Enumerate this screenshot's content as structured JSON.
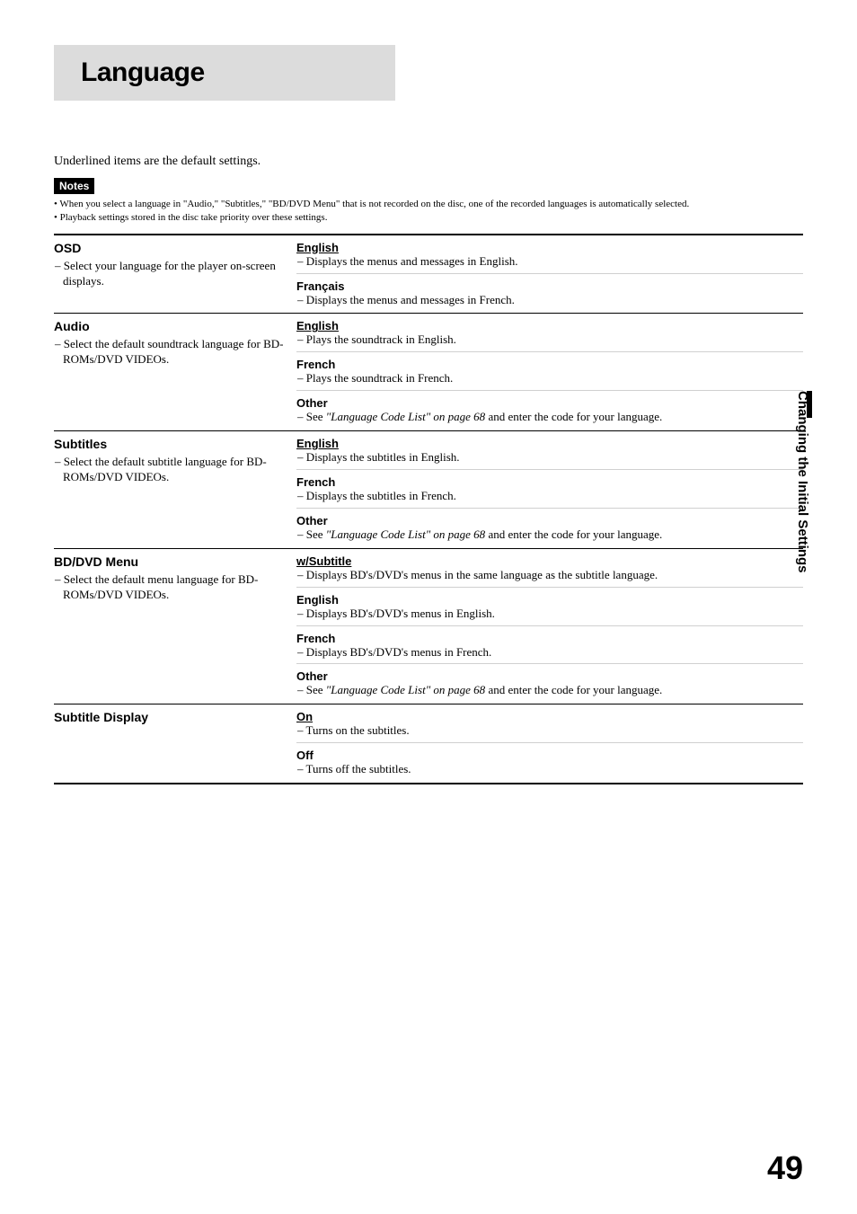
{
  "title": "Language",
  "intro": "Underlined items are the default settings.",
  "notes_label": "Notes",
  "notes": [
    "• When you select a language in \"Audio,\" \"Subtitles,\" \"BD/DVD Menu\" that is not recorded on the disc, one of the recorded languages is automatically selected.",
    "• Playback settings stored in the disc take priority over these settings."
  ],
  "sections": [
    {
      "name": "OSD",
      "desc": "– Select your language for the player on-screen displays.",
      "options": [
        {
          "name": "English",
          "default": true,
          "desc": "– Displays the menus and messages in English."
        },
        {
          "name": "Français",
          "default": false,
          "desc": "– Displays the menus and messages in French."
        }
      ]
    },
    {
      "name": "Audio",
      "desc": "– Select the default soundtrack language for BD-ROMs/DVD VIDEOs.",
      "options": [
        {
          "name": "English",
          "default": true,
          "desc": "– Plays the soundtrack in English."
        },
        {
          "name": "French",
          "default": false,
          "desc": "– Plays the soundtrack in French."
        },
        {
          "name": "Other",
          "default": false,
          "desc_pre": "– See ",
          "desc_italic": "\"Language Code List\" on page 68",
          "desc_post": " and enter the code for your language."
        }
      ]
    },
    {
      "name": "Subtitles",
      "desc": "– Select the default subtitle language for BD-ROMs/DVD VIDEOs.",
      "options": [
        {
          "name": "English",
          "default": true,
          "desc": "– Displays the subtitles in English."
        },
        {
          "name": "French",
          "default": false,
          "desc": "– Displays the subtitles in French."
        },
        {
          "name": "Other",
          "default": false,
          "desc_pre": "– See ",
          "desc_italic": "\"Language Code List\" on page 68",
          "desc_post": " and enter the code for your language."
        }
      ]
    },
    {
      "name": "BD/DVD Menu",
      "desc": "– Select the default menu language for BD-ROMs/DVD VIDEOs.",
      "options": [
        {
          "name": "w/Subtitle",
          "default": true,
          "desc": "– Displays BD's/DVD's menus in the same language as the subtitle language."
        },
        {
          "name": "English",
          "default": false,
          "desc": "– Displays BD's/DVD's menus in English."
        },
        {
          "name": "French",
          "default": false,
          "desc": "– Displays BD's/DVD's menus in French."
        },
        {
          "name": "Other",
          "default": false,
          "desc_pre": "– See ",
          "desc_italic": "\"Language Code List\" on page 68",
          "desc_post": " and enter the code for your language."
        }
      ]
    },
    {
      "name": "Subtitle Display",
      "desc": "",
      "options": [
        {
          "name": "On",
          "default": true,
          "desc": "– Turns on the subtitles."
        },
        {
          "name": "Off",
          "default": false,
          "desc": "– Turns off the subtitles."
        }
      ]
    }
  ],
  "sidetab": "Changing the Initial Settings",
  "page_number": "49"
}
